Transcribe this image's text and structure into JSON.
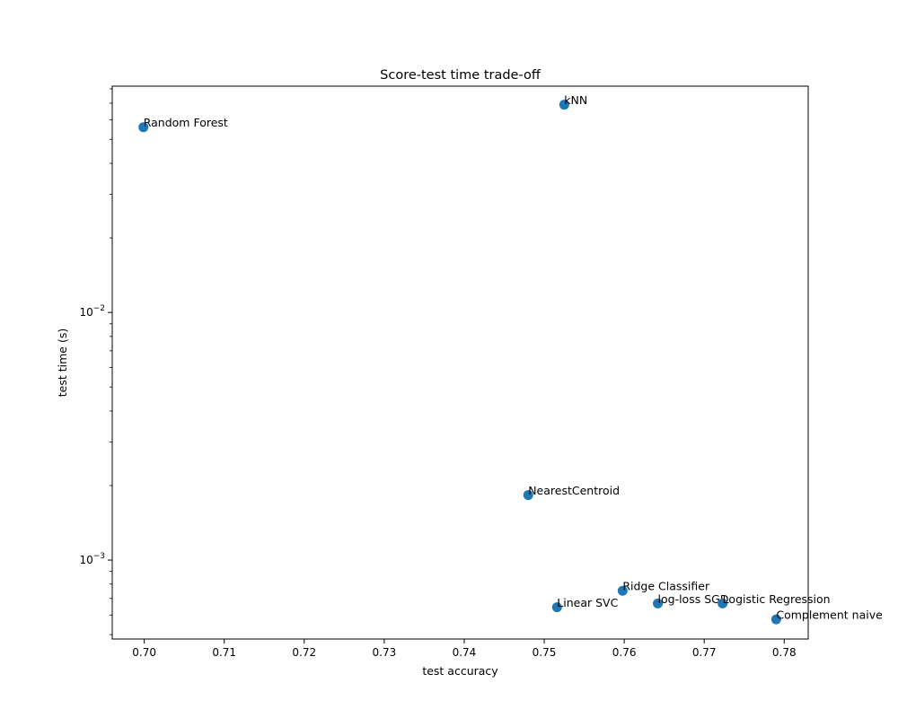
{
  "chart_data": {
    "type": "scatter",
    "title": "Score-test time trade-off",
    "xlabel": "test accuracy",
    "ylabel": "test time (s)",
    "xlim": [
      0.696,
      0.783
    ],
    "ylim": [
      0.00048,
      0.082
    ],
    "yscale": "log",
    "grid": false,
    "marker_color": "#1f77b4",
    "x_ticks": [
      0.7,
      0.71,
      0.72,
      0.73,
      0.74,
      0.75,
      0.76,
      0.77,
      0.78
    ],
    "x_tick_labels": [
      "0.70",
      "0.71",
      "0.72",
      "0.73",
      "0.74",
      "0.75",
      "0.76",
      "0.77",
      "0.78"
    ],
    "y_major_ticks": [
      0.001,
      0.01
    ],
    "y_major_tick_labels": [
      {
        "base": "10",
        "exp": "−3"
      },
      {
        "base": "10",
        "exp": "−2"
      }
    ],
    "y_minor_ticks": [
      0.0005,
      0.0006,
      0.0007,
      0.0008,
      0.0009,
      0.002,
      0.003,
      0.004,
      0.005,
      0.006,
      0.007,
      0.008,
      0.009,
      0.02,
      0.03,
      0.04,
      0.05,
      0.06,
      0.07,
      0.08
    ],
    "points": [
      {
        "label": "Random Forest",
        "x": 0.6999,
        "y": 0.056
      },
      {
        "label": "kNN",
        "x": 0.7525,
        "y": 0.069
      },
      {
        "label": "NearestCentroid",
        "x": 0.748,
        "y": 0.00183
      },
      {
        "label": "Ridge Classifier",
        "x": 0.7598,
        "y": 0.000752
      },
      {
        "label": "Linear SVC",
        "x": 0.7516,
        "y": 0.000645
      },
      {
        "label": "log-loss SGD",
        "x": 0.7642,
        "y": 0.000668
      },
      {
        "label": "Logistic Regression",
        "x": 0.7723,
        "y": 0.000668
      },
      {
        "label": "Complement naive",
        "x": 0.779,
        "y": 0.000576
      }
    ]
  }
}
